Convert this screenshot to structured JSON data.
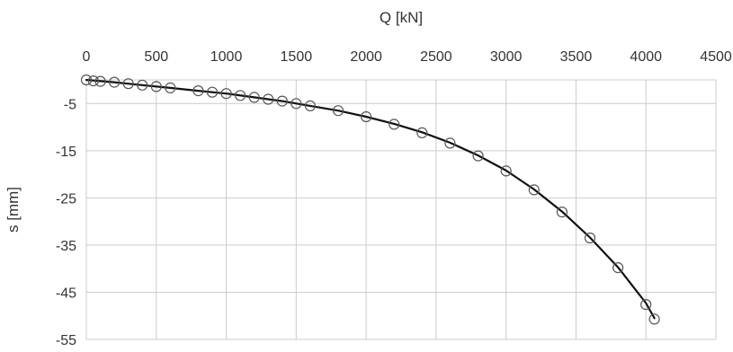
{
  "chart_data": {
    "type": "scatter",
    "title": "",
    "xlabel": "Q [kN]",
    "ylabel": "s [mm]",
    "x_axis_position": "top",
    "xlim": [
      0,
      4500
    ],
    "ylim": [
      -55,
      0
    ],
    "xticks": [
      0,
      500,
      1000,
      1500,
      2000,
      2500,
      3000,
      3500,
      4000,
      4500
    ],
    "yticks": [
      -5,
      -15,
      -25,
      -35,
      -45,
      -55
    ],
    "grid": true,
    "legend": "none",
    "series": [
      {
        "style": "markers",
        "marker": "open-circle",
        "color": "#555555",
        "x": [
          0,
          50,
          100,
          200,
          300,
          400,
          500,
          600,
          800,
          900,
          1000,
          1100,
          1200,
          1300,
          1400,
          1500,
          1600,
          1800,
          2000,
          2200,
          2400,
          2600,
          2800,
          3000,
          3200,
          3400,
          3600,
          3800,
          4000,
          4060
        ],
        "y": [
          0,
          -0.2,
          -0.3,
          -0.5,
          -0.8,
          -1.1,
          -1.4,
          -1.7,
          -2.3,
          -2.6,
          -2.9,
          -3.3,
          -3.7,
          -4.1,
          -4.5,
          -5.0,
          -5.5,
          -6.5,
          -7.8,
          -9.4,
          -11.2,
          -13.4,
          -16.1,
          -19.3,
          -23.3,
          -28.0,
          -33.5,
          -39.8,
          -47.6,
          -50.7
        ]
      },
      {
        "style": "line",
        "color": "#111111",
        "x": [
          0,
          200,
          400,
          600,
          800,
          1000,
          1200,
          1400,
          1600,
          1800,
          2000,
          2200,
          2400,
          2600,
          2800,
          3000,
          3200,
          3400,
          3600,
          3800,
          4000,
          4060
        ],
        "y": [
          0,
          -0.5,
          -1.1,
          -1.7,
          -2.3,
          -2.9,
          -3.7,
          -4.5,
          -5.5,
          -6.5,
          -7.8,
          -9.3,
          -11.1,
          -13.3,
          -16.0,
          -19.2,
          -23.2,
          -27.9,
          -33.4,
          -39.7,
          -47.3,
          -50.5
        ]
      }
    ]
  }
}
